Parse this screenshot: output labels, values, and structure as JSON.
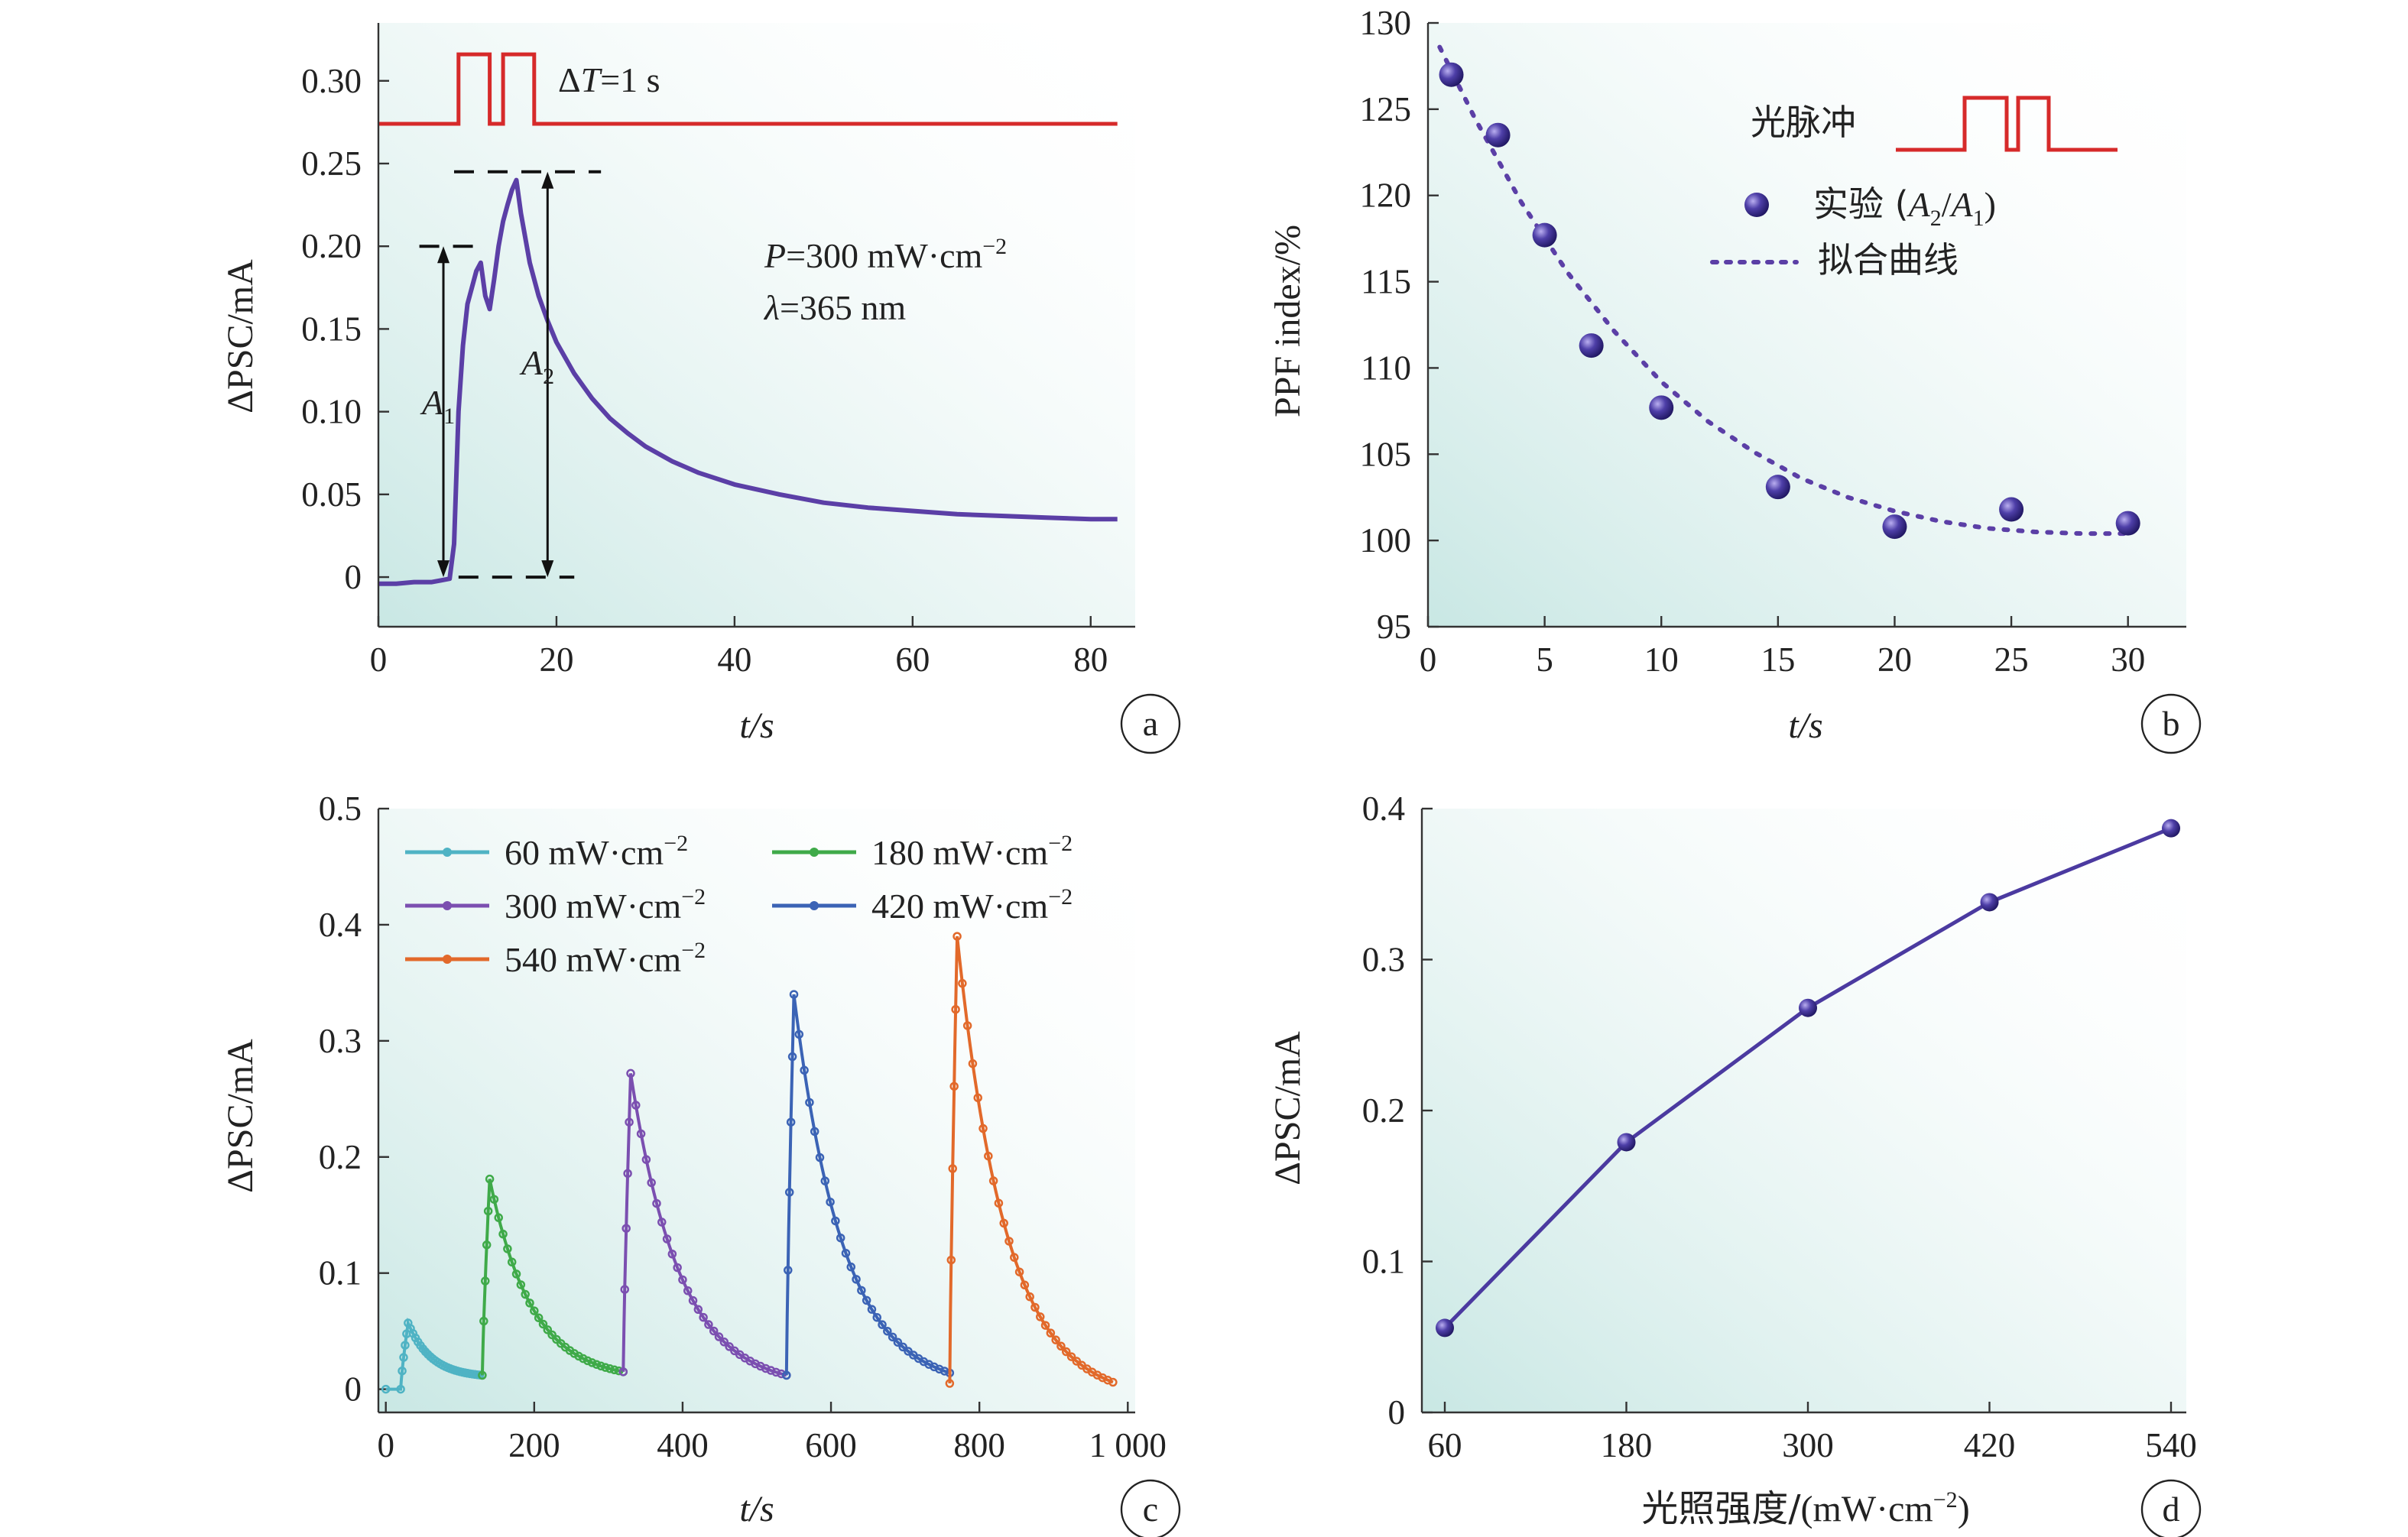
{
  "chart_data": [
    {
      "panel": "a",
      "type": "line",
      "xlabel": "t/s",
      "ylabel": "ΔPSC/mA",
      "xlim": [
        0,
        85
      ],
      "ylim": [
        -0.03,
        0.335
      ],
      "xticks": [
        0,
        20,
        40,
        60,
        80
      ],
      "xtick_labels": [
        "0",
        "20",
        "40",
        "60",
        "80"
      ],
      "yticks": [
        0,
        0.05,
        0.1,
        0.15,
        0.2,
        0.25,
        0.3
      ],
      "ytick_labels": [
        "0",
        "0.05",
        "0.10",
        "0.15",
        "0.20",
        "0.25",
        "0.30"
      ],
      "grid": false,
      "series": [
        {
          "color": "#5b3fa6",
          "x": [
            0,
            2,
            4,
            6,
            7,
            8,
            8.5,
            9,
            9.5,
            10,
            10.5,
            11,
            11.5,
            12,
            12.5,
            13,
            13.5,
            14,
            14.5,
            15,
            15.5,
            16,
            17,
            18,
            19,
            20,
            22,
            24,
            26,
            28,
            30,
            33,
            36,
            40,
            45,
            50,
            55,
            60,
            65,
            70,
            75,
            80,
            83
          ],
          "y": [
            -0.004,
            -0.004,
            -0.003,
            -0.003,
            -0.002,
            -0.001,
            0.02,
            0.1,
            0.14,
            0.165,
            0.175,
            0.185,
            0.19,
            0.17,
            0.162,
            0.18,
            0.2,
            0.215,
            0.225,
            0.234,
            0.24,
            0.22,
            0.19,
            0.17,
            0.155,
            0.142,
            0.123,
            0.108,
            0.096,
            0.087,
            0.079,
            0.07,
            0.063,
            0.056,
            0.05,
            0.045,
            0.042,
            0.04,
            0.038,
            0.037,
            0.036,
            0.035,
            0.035
          ]
        }
      ],
      "pulse": {
        "color": "#d62a2a",
        "x": [
          0,
          9,
          9,
          12.5,
          12.5,
          14,
          14,
          17.5,
          17.5,
          83
        ],
        "y": [
          0.274,
          0.274,
          0.316,
          0.316,
          0.274,
          0.274,
          0.316,
          0.316,
          0.274,
          0.274
        ]
      },
      "markers": {
        "a1_x": 7.3,
        "a1_y0": 0,
        "a1_y1": 0.2,
        "a2_x": 19,
        "a2_y0": 0,
        "a2_y1": 0.245,
        "dash_bottom": [
          9,
          22
        ],
        "dash_a1": [
          4.6,
          12
        ],
        "dash_a2": [
          8.5,
          25
        ]
      },
      "annotations": {
        "pulse_label_prefix": "Δ",
        "pulse_label_var": "T",
        "pulse_label_rest": "=1 s",
        "power_var": "P",
        "power_rest": "=300 mW·cm",
        "power_sup": "−2",
        "lambda_var": "λ",
        "lambda_rest": "=365 nm",
        "a1": "A",
        "a1_sub": "1",
        "a2": "A",
        "a2_sub": "2"
      },
      "panel_label": "a"
    },
    {
      "panel": "b",
      "type": "scatter",
      "xlabel": "t/s",
      "ylabel": "PPF index/%",
      "xlim": [
        0,
        32.5
      ],
      "ylim": [
        95,
        130
      ],
      "xticks": [
        0,
        5,
        10,
        15,
        20,
        25,
        30
      ],
      "xtick_labels": [
        "0",
        "5",
        "10",
        "15",
        "20",
        "25",
        "30"
      ],
      "yticks": [
        95,
        100,
        105,
        110,
        115,
        120,
        125,
        130
      ],
      "ytick_labels": [
        "95",
        "100",
        "105",
        "110",
        "115",
        "120",
        "125",
        "130"
      ],
      "grid": false,
      "legend_position": "top-right",
      "series": [
        {
          "name": "实验 (A2/A1)",
          "color": "#4b3aa0",
          "x": [
            1,
            3,
            5,
            7,
            10,
            15,
            20,
            25,
            30
          ],
          "y": [
            127,
            123.5,
            117.7,
            111.3,
            107.7,
            103.1,
            100.8,
            101.8,
            101
          ]
        }
      ],
      "fit": {
        "name": "拟合曲线",
        "color": "#5b3fa6",
        "x": [
          0.5,
          2,
          4,
          6,
          8,
          10,
          12,
          14,
          16,
          18,
          20,
          22,
          24,
          26,
          28,
          30
        ],
        "y": [
          128.6,
          124.5,
          119.6,
          115.5,
          112.1,
          109.2,
          106.9,
          105.1,
          103.6,
          102.5,
          101.7,
          101.1,
          100.7,
          100.5,
          100.4,
          100.4
        ]
      },
      "legend": {
        "pulse_label": "光脉冲",
        "exp_prefix": "实验 (",
        "exp_a2": "A",
        "exp_a2_sub": "2",
        "exp_slash": "/",
        "exp_a1": "A",
        "exp_a1_sub": "1",
        "exp_suffix": ")",
        "fit_label": "拟合曲线"
      },
      "panel_label": "b"
    },
    {
      "panel": "c",
      "type": "line",
      "xlabel": "t/s",
      "ylabel": "ΔPSC/mA",
      "xlim": [
        -10,
        1010
      ],
      "ylim": [
        -0.02,
        0.5
      ],
      "xticks": [
        0,
        200,
        400,
        600,
        800,
        1000
      ],
      "xtick_labels": [
        "0",
        "200",
        "400",
        "600",
        "800",
        "1 000"
      ],
      "yticks": [
        0,
        0.1,
        0.2,
        0.3,
        0.4,
        0.5
      ],
      "ytick_labels": [
        "0",
        "0.1",
        "0.2",
        "0.3",
        "0.4",
        "0.5"
      ],
      "grid": false,
      "legend_position": "top-left",
      "series": [
        {
          "name": "60 mW·cm−2",
          "color": "#4fb3c4",
          "start": 0,
          "rise_start": 20,
          "rise_end": 30,
          "base": 0,
          "peak": 0.057,
          "end": 130,
          "end_value": 0.012
        },
        {
          "name": "180 mW·cm−2",
          "color": "#3faa49",
          "start": 130,
          "rise_start": 130,
          "rise_end": 140,
          "base": 0.012,
          "peak": 0.181,
          "end": 320,
          "end_value": 0.015
        },
        {
          "name": "300 mW·cm−2",
          "color": "#7b4fb0",
          "start": 320,
          "rise_start": 320,
          "rise_end": 330,
          "base": 0.015,
          "peak": 0.272,
          "end": 540,
          "end_value": 0.012
        },
        {
          "name": "420 mW·cm−2",
          "color": "#3b63b5",
          "start": 540,
          "rise_start": 540,
          "rise_end": 550,
          "base": 0.012,
          "peak": 0.34,
          "end": 760,
          "end_value": 0.014
        },
        {
          "name": "540 mW·cm−2",
          "color": "#e2692a",
          "start": 760,
          "rise_start": 760,
          "rise_end": 770,
          "base": 0.005,
          "peak": 0.39,
          "end": 980,
          "end_value": 0.006
        }
      ],
      "legend": [
        {
          "text": "60 mW·cm",
          "sup": "−2",
          "color": "#4fb3c4"
        },
        {
          "text": "180 mW·cm",
          "sup": "−2",
          "color": "#3faa49"
        },
        {
          "text": "300 mW·cm",
          "sup": "−2",
          "color": "#7b4fb0"
        },
        {
          "text": "420 mW·cm",
          "sup": "−2",
          "color": "#3b63b5"
        },
        {
          "text": "540 mW·cm",
          "sup": "−2",
          "color": "#e2692a"
        }
      ],
      "panel_label": "c"
    },
    {
      "panel": "d",
      "type": "line",
      "xlabel_main": "光照强度/",
      "xlabel_unit": "(mW·cm",
      "xlabel_sup": "−2",
      "xlabel_close": ")",
      "ylabel": "ΔPSC/mA",
      "xlim": [
        60,
        540
      ],
      "ylim": [
        0,
        0.4
      ],
      "xticks": [
        60,
        180,
        300,
        420,
        540
      ],
      "xtick_labels": [
        "60",
        "180",
        "300",
        "420",
        "540"
      ],
      "yticks": [
        0,
        0.1,
        0.2,
        0.3,
        0.4
      ],
      "ytick_labels": [
        "0",
        "0.1",
        "0.2",
        "0.3",
        "0.4"
      ],
      "grid": false,
      "series": [
        {
          "color": "#4b3aa0",
          "x": [
            60,
            180,
            300,
            420,
            540
          ],
          "y": [
            0.056,
            0.179,
            0.268,
            0.338,
            0.387
          ]
        }
      ],
      "panel_label": "d"
    }
  ]
}
